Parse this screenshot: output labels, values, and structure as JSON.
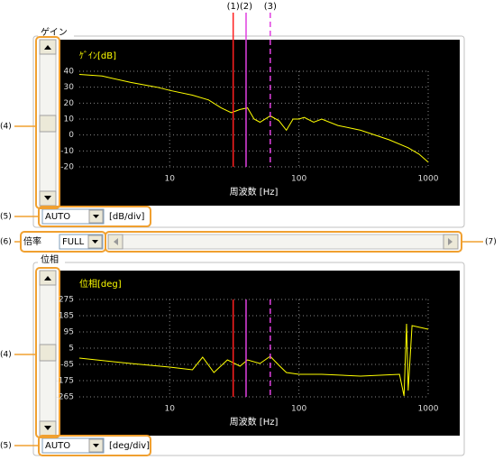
{
  "chart_data": [
    {
      "type": "line",
      "ylabel": "ｹﾞｲﾝ[dB]",
      "xlabel": "周波数 [Hz]",
      "log_x": true,
      "xlim": [
        2,
        1000
      ],
      "xticks": [
        10,
        100,
        1000
      ],
      "ylim": [
        -20,
        40
      ],
      "yticks": [
        40,
        30,
        20,
        10,
        0,
        -10,
        -20
      ],
      "grid": true,
      "x": [
        2,
        3,
        5,
        8,
        10,
        15,
        20,
        25,
        30,
        35,
        40,
        45,
        50,
        60,
        70,
        80,
        90,
        100,
        110,
        130,
        150,
        200,
        300,
        500,
        700,
        850,
        1000
      ],
      "series": [
        {
          "color": "#ffff00",
          "values": [
            38,
            37,
            33,
            30,
            28,
            25,
            22,
            17,
            14,
            16,
            17,
            10,
            8,
            12,
            9,
            3,
            10,
            10,
            11,
            8,
            10,
            6,
            3,
            -3,
            -8,
            -12,
            -17
          ]
        }
      ],
      "markers": [
        {
          "label": "(1)",
          "x": 31,
          "color": "#ff2020",
          "dashed": false
        },
        {
          "label": "(2)",
          "x": 39,
          "color": "#e040e0",
          "dashed": false
        },
        {
          "label": "(3)",
          "x": 60,
          "color": "#e040e0",
          "dashed": true
        }
      ]
    },
    {
      "type": "line",
      "ylabel": "位相[deg]",
      "xlabel": "周波数 [Hz]",
      "log_x": true,
      "xlim": [
        2,
        1000
      ],
      "xticks": [
        10,
        100,
        1000
      ],
      "ylim": [
        -265,
        275
      ],
      "yticks": [
        275,
        185,
        95,
        5,
        -85,
        -175,
        -265
      ],
      "grid": true,
      "x": [
        2,
        5,
        10,
        15,
        18,
        22,
        28,
        35,
        40,
        50,
        60,
        70,
        80,
        100,
        150,
        300,
        600,
        650,
        680,
        700,
        750,
        1000
      ],
      "series": [
        {
          "color": "#ffff00",
          "values": [
            -50,
            -80,
            -100,
            -115,
            -45,
            -130,
            -60,
            -95,
            -60,
            -80,
            -40,
            -90,
            -130,
            -140,
            -140,
            -150,
            -140,
            -260,
            140,
            -230,
            130,
            110
          ]
        }
      ],
      "markers": [
        {
          "x": 31,
          "color": "#ff2020",
          "dashed": false
        },
        {
          "x": 39,
          "color": "#e040e0",
          "dashed": false
        },
        {
          "x": 60,
          "color": "#e040e0",
          "dashed": true
        }
      ]
    }
  ],
  "gain_panel": {
    "title": "ゲイン",
    "scale": "AUTO",
    "unit": "[dB/div]"
  },
  "zoom": {
    "label": "倍率",
    "value": "FULL"
  },
  "phase_panel": {
    "title": "位相",
    "scale": "AUTO",
    "unit": "[deg/div]"
  },
  "callouts": [
    "(4)",
    "(5)",
    "(6)",
    "(7)",
    "(4)",
    "(5)"
  ]
}
